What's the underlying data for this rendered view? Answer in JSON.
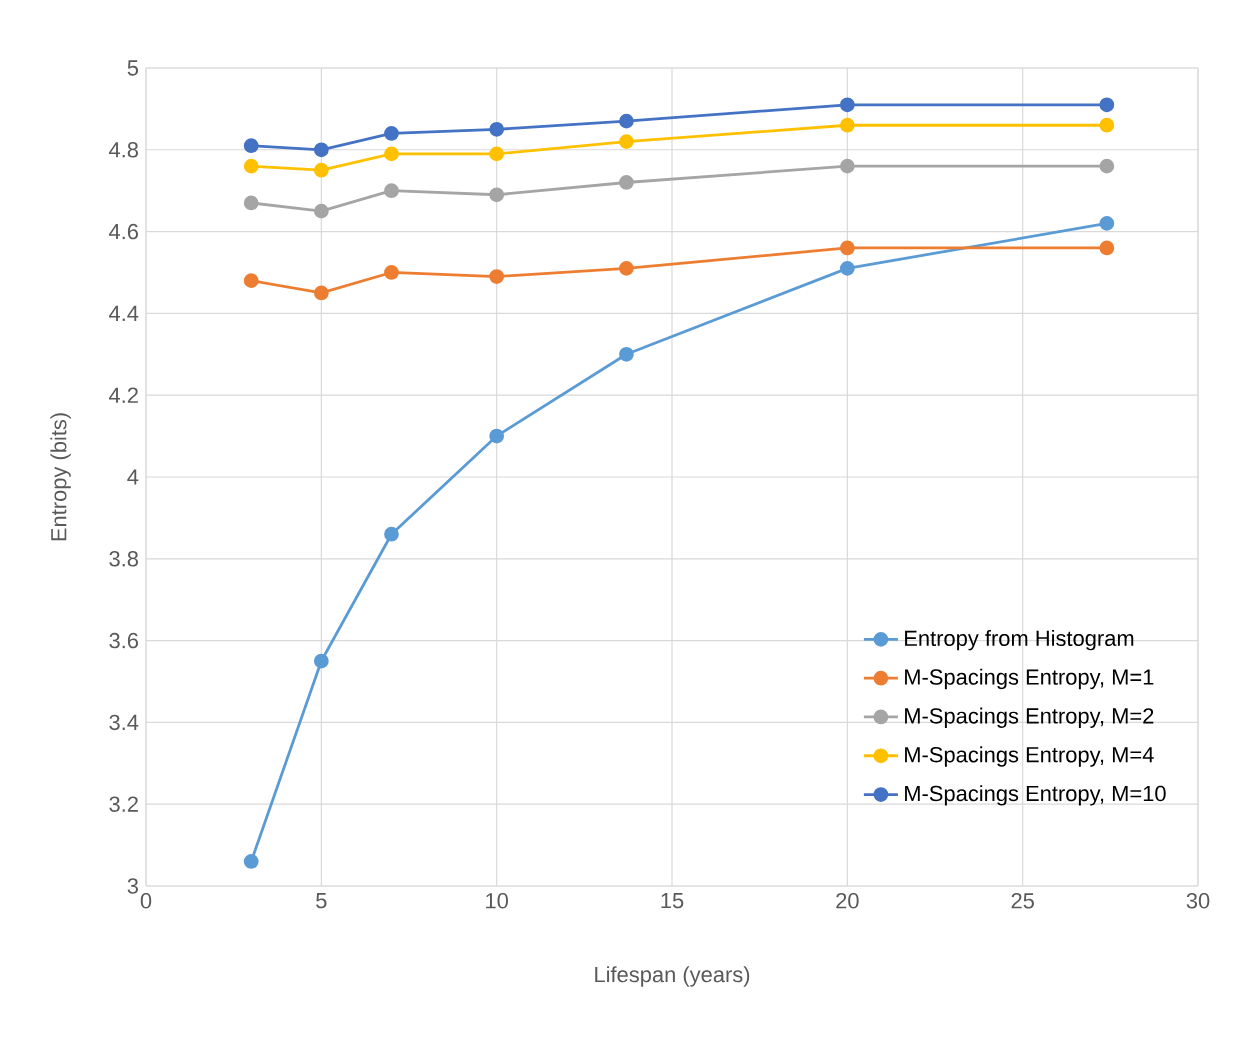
{
  "chart_data": {
    "type": "line",
    "xlabel": "Lifespan (years)",
    "ylabel": "Entropy (bits)",
    "x": [
      3,
      5,
      7,
      10,
      13.7,
      20,
      27.4
    ],
    "series": [
      {
        "name": "Entropy from Histogram",
        "color": "#5b9bd5",
        "values": [
          3.06,
          3.55,
          3.86,
          4.1,
          4.3,
          4.51,
          4.62
        ]
      },
      {
        "name": "M-Spacings Entropy, M=1",
        "color": "#ed7d31",
        "values": [
          4.48,
          4.45,
          4.5,
          4.49,
          4.51,
          4.56,
          4.56
        ]
      },
      {
        "name": "M-Spacings Entropy, M=2",
        "color": "#a5a5a5",
        "values": [
          4.67,
          4.65,
          4.7,
          4.69,
          4.72,
          4.76,
          4.76
        ]
      },
      {
        "name": "M-Spacings Entropy, M=4",
        "color": "#ffc000",
        "values": [
          4.76,
          4.75,
          4.79,
          4.79,
          4.82,
          4.86,
          4.86
        ]
      },
      {
        "name": "M-Spacings Entropy, M=10",
        "color": "#4472c4",
        "values": [
          4.81,
          4.8,
          4.84,
          4.85,
          4.87,
          4.91,
          4.91
        ]
      }
    ],
    "xlim": [
      0,
      30
    ],
    "xticks": [
      0,
      5,
      10,
      15,
      20,
      25,
      30
    ],
    "ylim": [
      3,
      5
    ],
    "yticks": [
      3,
      3.2,
      3.4,
      3.6,
      3.8,
      4,
      4.2,
      4.4,
      4.6,
      4.8,
      5
    ],
    "grid": true,
    "legend": "bottom right",
    "marker": "circle",
    "line_style": "solid"
  }
}
